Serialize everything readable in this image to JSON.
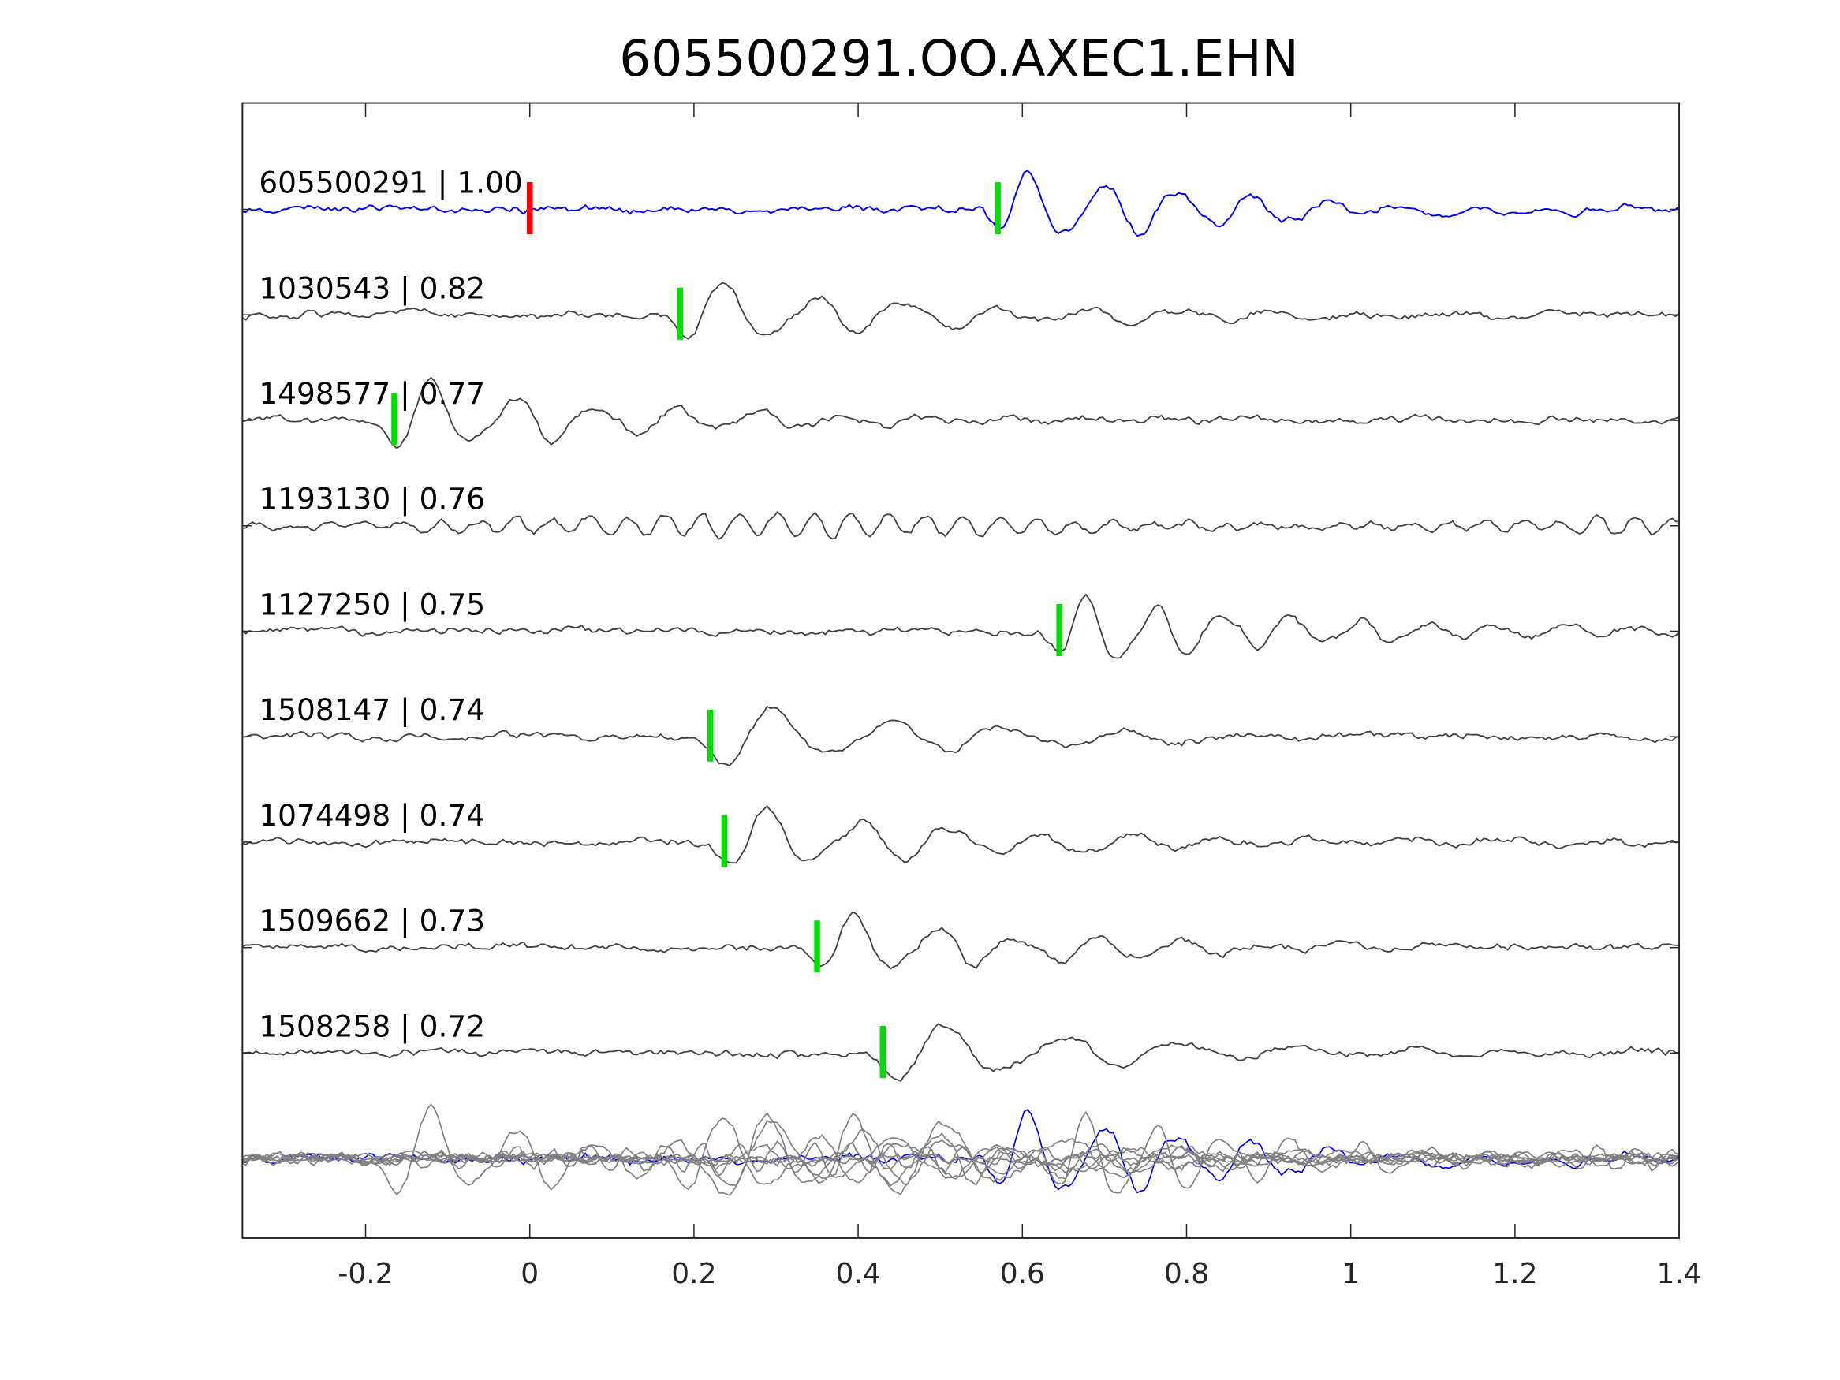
{
  "chart_data": {
    "type": "line",
    "title": "605500291.OO.AXEC1.EHN",
    "xlabel": "",
    "ylabel": "",
    "xlim": [
      -0.35,
      1.4
    ],
    "xticks": [
      -0.2,
      0,
      0.2,
      0.4,
      0.6,
      0.8,
      1,
      1.2,
      1.4
    ],
    "xtick_labels": [
      "-0.2",
      "0",
      "0.2",
      "0.4",
      "0.6",
      "0.8",
      "1",
      "1.2",
      "1.4"
    ],
    "grid": false,
    "reference_marker": {
      "time": 0.0,
      "color": "#ff0000"
    },
    "pick_color": "#00e000",
    "template_color": "#0000ff",
    "trace_color": "#404040",
    "stack_color": "#808080",
    "traces": [
      {
        "id": "605500291",
        "score": "1.00",
        "label": "605500291 | 1.00",
        "pick": 0.57,
        "template": true,
        "freq": 11,
        "amp": 1.2
      },
      {
        "id": "1030543",
        "score": "0.82",
        "label": "1030543 | 0.82",
        "pick": 0.183,
        "freq": 9,
        "amp": 1.1
      },
      {
        "id": "1498577",
        "score": "0.77",
        "label": "1498577 | 0.77",
        "pick": -0.165,
        "freq": 10,
        "amp": 1.2
      },
      {
        "id": "1193130",
        "score": "0.76",
        "label": "1193130 | 0.76",
        "pick": null,
        "freq": 22,
        "amp": 1.0
      },
      {
        "id": "1127250",
        "score": "0.75",
        "label": "1127250 | 0.75",
        "pick": 0.645,
        "freq": 12,
        "amp": 1.2
      },
      {
        "id": "1508147",
        "score": "0.74",
        "label": "1508147 | 0.74",
        "pick": 0.22,
        "freq": 7,
        "amp": 1.1
      },
      {
        "id": "1074498",
        "score": "0.74",
        "label": "1074498 | 0.74",
        "pick": 0.237,
        "freq": 9,
        "amp": 1.1
      },
      {
        "id": "1509662",
        "score": "0.73",
        "label": "1509662 | 0.73",
        "pick": 0.35,
        "freq": 10,
        "amp": 1.0
      },
      {
        "id": "1508258",
        "score": "0.72",
        "label": "1508258 | 0.72",
        "pick": 0.43,
        "freq": 7,
        "amp": 1.1
      }
    ]
  }
}
